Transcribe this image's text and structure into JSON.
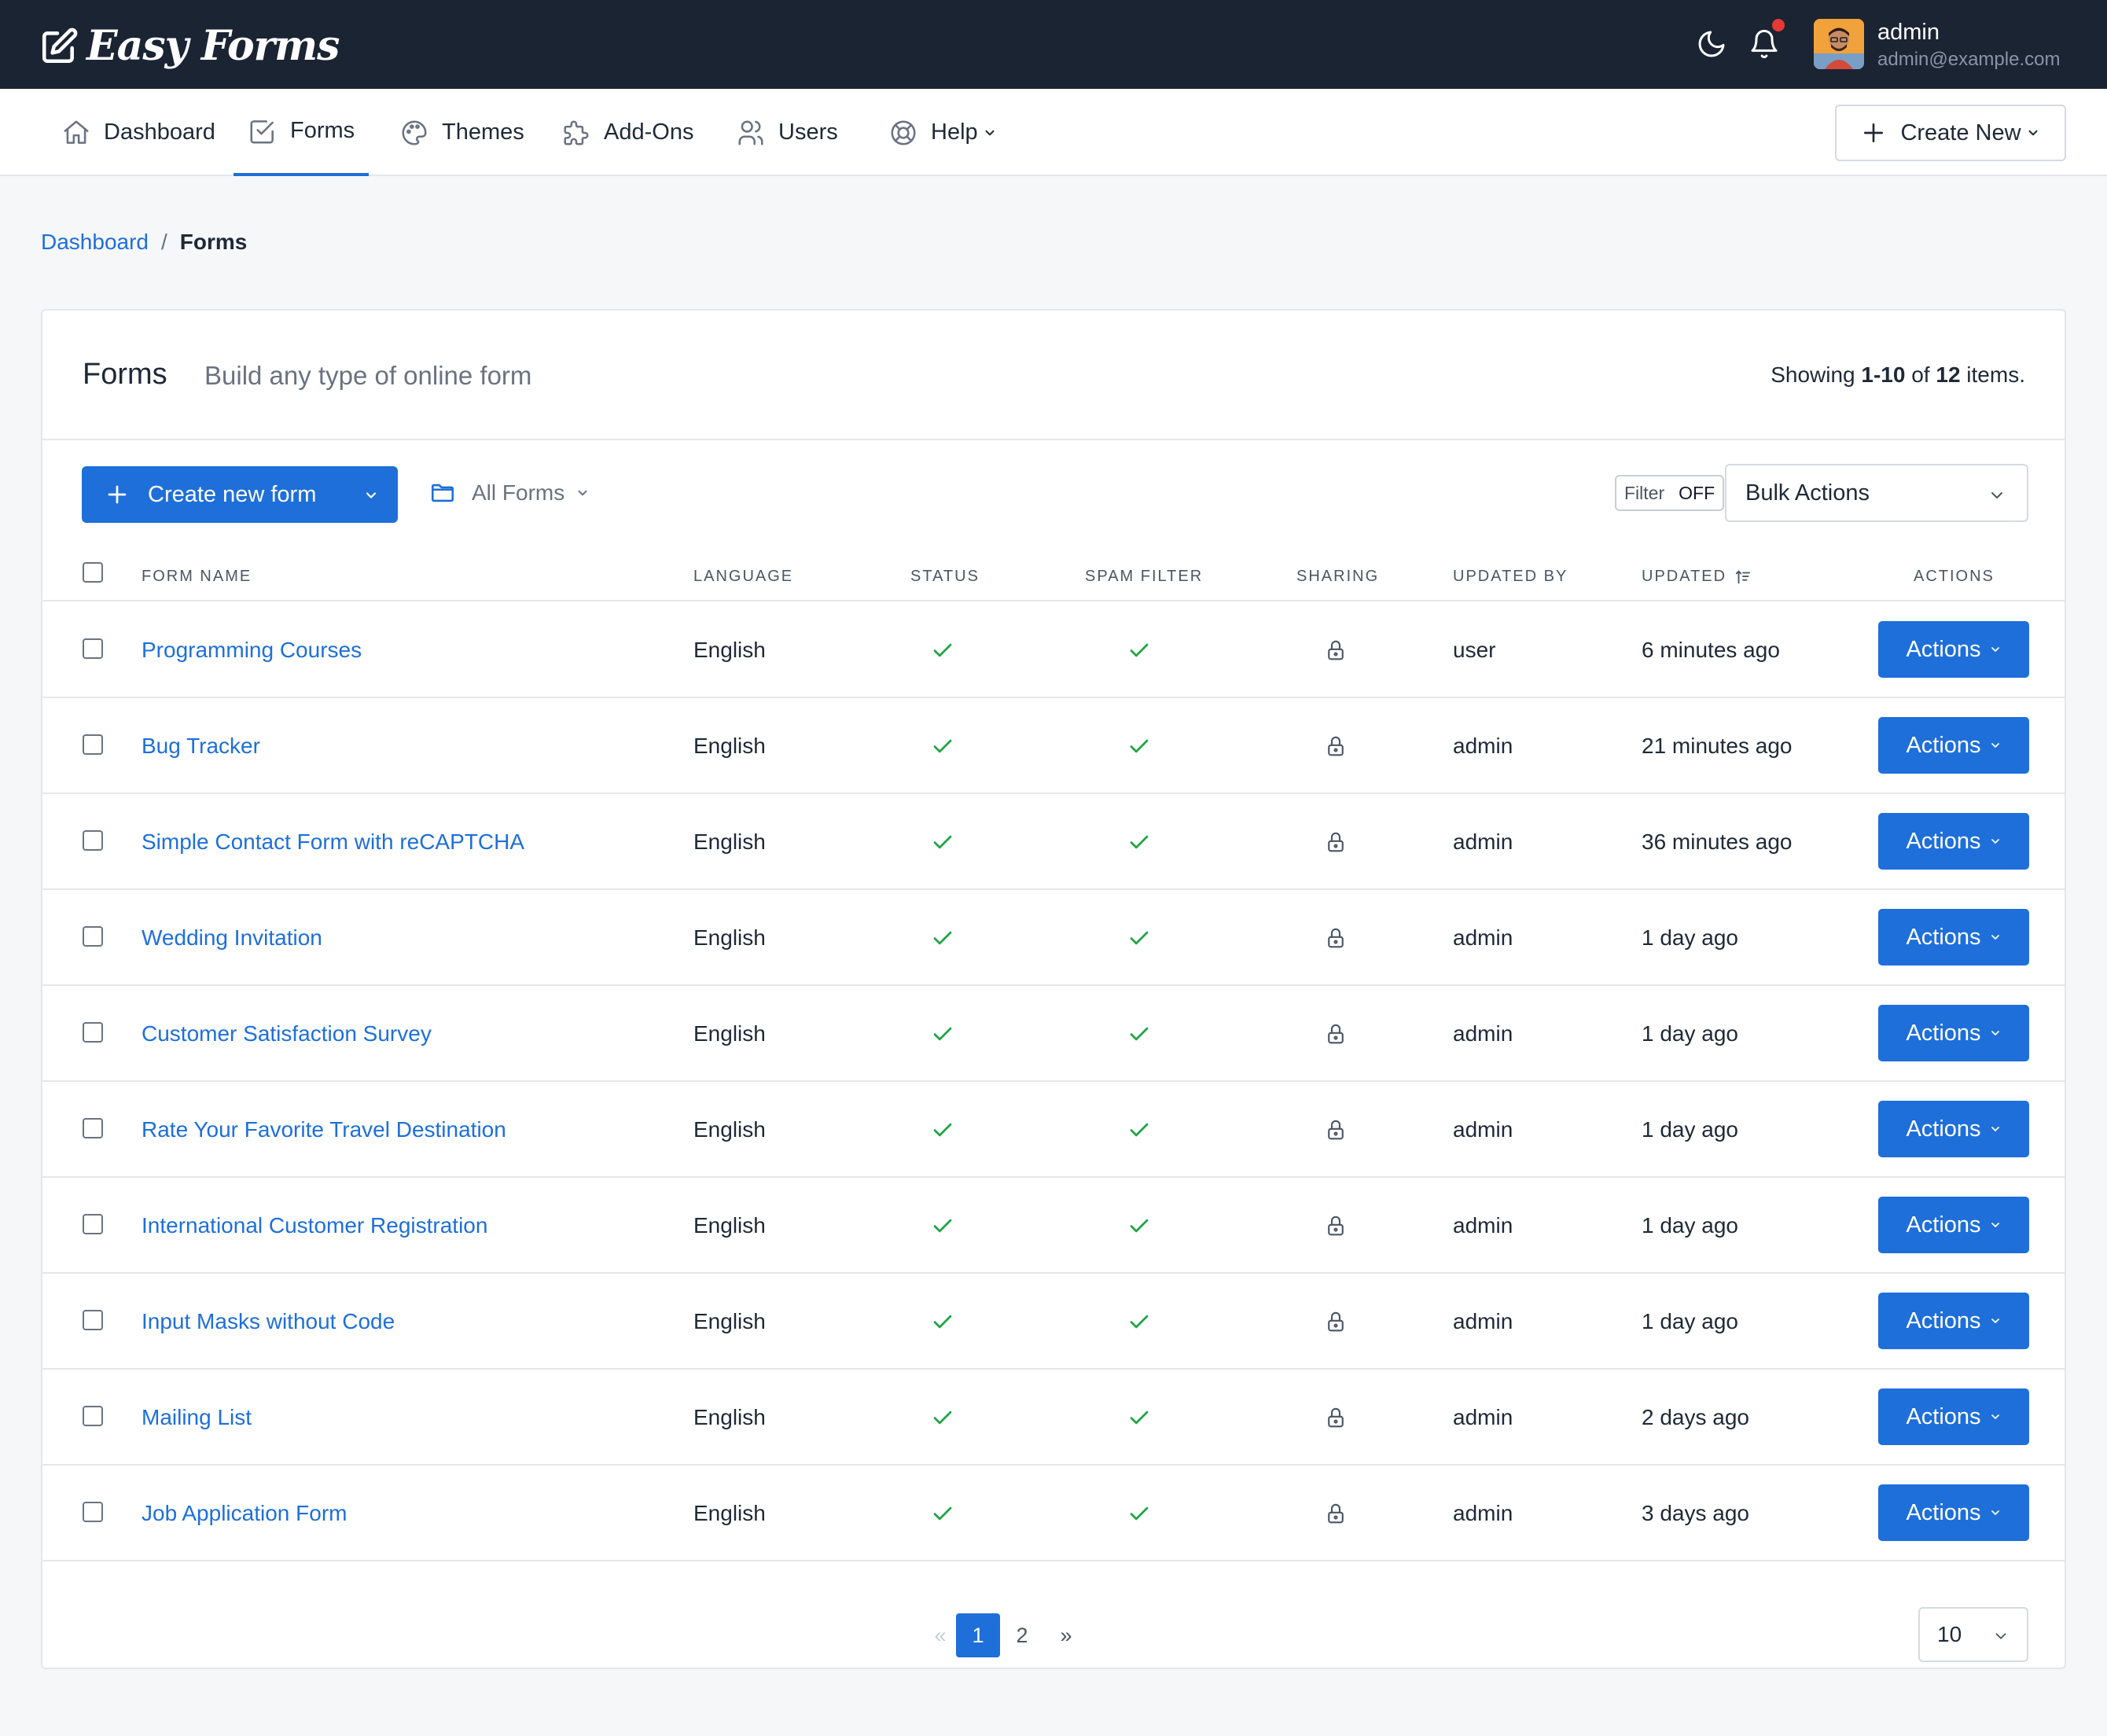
{
  "app": {
    "brand": "Easy Forms",
    "user_name": "admin",
    "user_email": "admin@example.com"
  },
  "nav": {
    "items": [
      {
        "label": "Dashboard",
        "icon": "home-icon"
      },
      {
        "label": "Forms",
        "icon": "form-check-icon",
        "active": true
      },
      {
        "label": "Themes",
        "icon": "palette-icon"
      },
      {
        "label": "Add-Ons",
        "icon": "puzzle-icon"
      },
      {
        "label": "Users",
        "icon": "users-icon"
      },
      {
        "label": "Help",
        "icon": "lifebuoy-icon"
      }
    ],
    "create_new_label": "Create New"
  },
  "breadcrumb": {
    "home": "Dashboard",
    "separator": "/",
    "current": "Forms"
  },
  "card": {
    "title": "Forms",
    "subtitle": "Build any type of online form",
    "showing_prefix": "Showing ",
    "showing_range": "1-10",
    "showing_of": " of ",
    "showing_total": "12",
    "showing_suffix": " items."
  },
  "toolbar": {
    "create_form_label": "Create new form",
    "folder_label": "All Forms",
    "filter_label": "Filter",
    "filter_value": "OFF",
    "bulk_actions_label": "Bulk Actions"
  },
  "table": {
    "columns": {
      "form_name": "FORM NAME",
      "language": "LANGUAGE",
      "status": "STATUS",
      "spam_filter": "SPAM FILTER",
      "sharing": "SHARING",
      "updated_by": "UPDATED BY",
      "updated": "UPDATED",
      "actions": "ACTIONS"
    },
    "action_label": "Actions",
    "rows": [
      {
        "name": "Programming Courses",
        "language": "English",
        "updated_by": "user",
        "updated": "6 minutes ago"
      },
      {
        "name": "Bug Tracker",
        "language": "English",
        "updated_by": "admin",
        "updated": "21 minutes ago"
      },
      {
        "name": "Simple Contact Form with reCAPTCHA",
        "language": "English",
        "updated_by": "admin",
        "updated": "36 minutes ago"
      },
      {
        "name": "Wedding Invitation",
        "language": "English",
        "updated_by": "admin",
        "updated": "1 day ago"
      },
      {
        "name": "Customer Satisfaction Survey",
        "language": "English",
        "updated_by": "admin",
        "updated": "1 day ago"
      },
      {
        "name": "Rate Your Favorite Travel Destination",
        "language": "English",
        "updated_by": "admin",
        "updated": "1 day ago"
      },
      {
        "name": "International Customer Registration",
        "language": "English",
        "updated_by": "admin",
        "updated": "1 day ago"
      },
      {
        "name": "Input Masks without Code",
        "language": "English",
        "updated_by": "admin",
        "updated": "1 day ago"
      },
      {
        "name": "Mailing List",
        "language": "English",
        "updated_by": "admin",
        "updated": "2 days ago"
      },
      {
        "name": "Job Application Form",
        "language": "English",
        "updated_by": "admin",
        "updated": "3 days ago"
      }
    ]
  },
  "pagination": {
    "prev": "«",
    "current": "1",
    "page2": "2",
    "next": "»",
    "per_page": "10"
  },
  "colors": {
    "topbar": "#1b2433",
    "primary": "#1e6fd9",
    "success": "#22a447",
    "notification": "#e53935"
  }
}
